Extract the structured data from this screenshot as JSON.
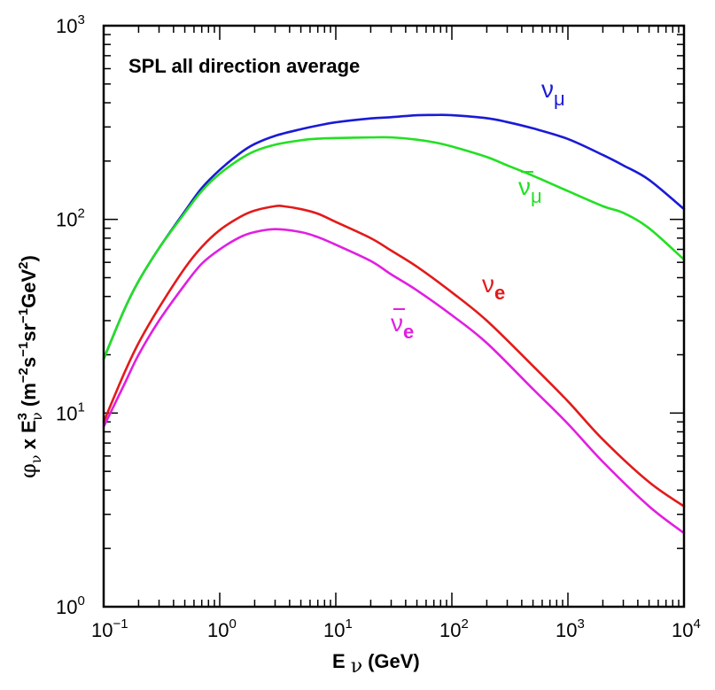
{
  "chart_data": {
    "type": "line",
    "title": "SPL all direction average",
    "xlabel": {
      "prefix": "E",
      "sub": "ν",
      "units": "(GeV)"
    },
    "ylabel": {
      "phi": "φ",
      "phi_sub": "ν",
      "mid": " x E",
      "e_sup": "3",
      "e_sub": "ν",
      "units": " (m",
      "exp1": "−2",
      "s": "s",
      "exp2": "−1",
      "sr": "sr",
      "exp3": "−1",
      "gev": "GeV",
      "exp4": "2",
      "close": ")"
    },
    "x_scale": "log",
    "y_scale": "log",
    "xlim": [
      0.1,
      10000
    ],
    "ylim": [
      1,
      1000
    ],
    "x_ticks": [
      {
        "base": "10",
        "exp": "−1",
        "value": 0.1
      },
      {
        "base": "10",
        "exp": "0",
        "value": 1
      },
      {
        "base": "10",
        "exp": "1",
        "value": 10
      },
      {
        "base": "10",
        "exp": "2",
        "value": 100
      },
      {
        "base": "10",
        "exp": "3",
        "value": 1000
      },
      {
        "base": "10",
        "exp": "4",
        "value": 10000
      }
    ],
    "y_ticks": [
      {
        "base": "10",
        "exp": "0",
        "value": 1
      },
      {
        "base": "10",
        "exp": "1",
        "value": 10
      },
      {
        "base": "10",
        "exp": "2",
        "value": 100
      },
      {
        "base": "10",
        "exp": "3",
        "value": 1000
      }
    ],
    "grid": false,
    "series": [
      {
        "name": "numu",
        "label_main": "ν",
        "label_sub": "μ",
        "bar": false,
        "label_bold": false,
        "color": "#1a1ad6",
        "x": [
          0.1,
          0.15,
          0.2,
          0.3,
          0.5,
          0.7,
          1,
          1.5,
          2,
          3,
          5,
          7,
          10,
          20,
          30,
          50,
          70,
          100,
          200,
          300,
          500,
          1000,
          2000,
          3000,
          5000,
          10000
        ],
        "y": [
          19,
          34,
          48,
          71,
          110,
          145,
          180,
          220,
          245,
          270,
          292,
          305,
          317,
          332,
          337,
          345,
          346,
          345,
          333,
          318,
          295,
          260,
          215,
          190,
          160,
          113
        ]
      },
      {
        "name": "numubar",
        "label_main": "ν",
        "label_sub": "μ",
        "bar": true,
        "label_bold": false,
        "color": "#22e022",
        "x": [
          0.1,
          0.15,
          0.2,
          0.3,
          0.5,
          0.7,
          1,
          1.5,
          2,
          3,
          5,
          7,
          10,
          20,
          30,
          50,
          70,
          100,
          200,
          300,
          500,
          1000,
          2000,
          3000,
          5000,
          10000
        ],
        "y": [
          19,
          34,
          48,
          71,
          108,
          140,
          172,
          205,
          225,
          243,
          256,
          261,
          263,
          265,
          265,
          258,
          250,
          238,
          210,
          190,
          168,
          140,
          117,
          108,
          90,
          62
        ]
      },
      {
        "name": "nue",
        "label_main": "ν",
        "label_sub": "e",
        "bar": false,
        "label_bold": true,
        "color": "#e31a1a",
        "x": [
          0.1,
          0.15,
          0.2,
          0.3,
          0.5,
          0.7,
          1,
          1.5,
          2,
          3,
          3.5,
          5,
          7,
          10,
          20,
          30,
          50,
          100,
          200,
          500,
          1000,
          2000,
          5000,
          10000
        ],
        "y": [
          9,
          16,
          23,
          35,
          56,
          72,
          88,
          103,
          111,
          117,
          117,
          113,
          107,
          97,
          80,
          69,
          57,
          42,
          30,
          17.5,
          11.5,
          7.3,
          4.4,
          3.3
        ]
      },
      {
        "name": "nuebar",
        "label_main": "ν",
        "label_sub": "e",
        "bar": true,
        "label_bold": true,
        "color": "#e11ee1",
        "x": [
          0.1,
          0.15,
          0.2,
          0.3,
          0.5,
          0.7,
          1,
          1.5,
          2,
          3,
          5,
          7,
          10,
          20,
          30,
          50,
          100,
          200,
          500,
          1000,
          2000,
          5000,
          10000
        ],
        "y": [
          8.5,
          14,
          20,
          30,
          46,
          59,
          70,
          81,
          86,
          89,
          86,
          81,
          74,
          61,
          52,
          43,
          32,
          23,
          13.3,
          8.8,
          5.6,
          3.3,
          2.4
        ]
      }
    ]
  }
}
